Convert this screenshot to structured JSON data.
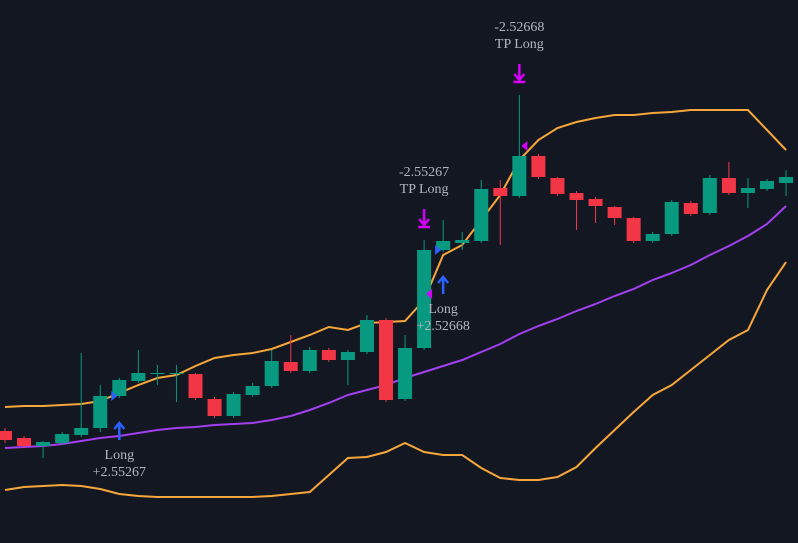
{
  "chart_data": {
    "type": "candlestick",
    "ylim": [
      0,
      543
    ],
    "up_color": "#089981",
    "down_color": "#f23645",
    "open": [
      112,
      105,
      97,
      100,
      108,
      115,
      147,
      162,
      169,
      170,
      169,
      144,
      127,
      148,
      157,
      181,
      172,
      193,
      183,
      191,
      223,
      144,
      195,
      293,
      300,
      302,
      355,
      347,
      387,
      365,
      350,
      344,
      336,
      325,
      302,
      309,
      340,
      330,
      365,
      350,
      354,
      360
    ],
    "high": [
      115,
      107,
      102,
      111,
      190,
      158,
      165,
      193,
      178,
      178,
      170,
      146,
      151,
      160,
      193,
      208,
      196,
      195,
      193,
      228,
      225,
      208,
      303,
      323,
      311,
      363,
      363,
      448,
      389,
      366,
      352,
      346,
      337,
      326,
      311,
      343,
      342,
      368,
      381,
      365,
      364,
      373
    ],
    "low": [
      100,
      95,
      85,
      98,
      106,
      111,
      145,
      160,
      158,
      141,
      143,
      125,
      125,
      146,
      155,
      170,
      170,
      181,
      158,
      189,
      141,
      142,
      193,
      291,
      293,
      300,
      298,
      345,
      364,
      347,
      313,
      320,
      318,
      300,
      300,
      307,
      327,
      328,
      348,
      335,
      352,
      347
    ],
    "close": [
      103,
      97,
      101,
      109,
      115,
      147,
      163,
      170,
      170,
      170,
      145,
      127,
      149,
      157,
      182,
      172,
      193,
      183,
      191,
      223,
      143,
      195,
      293,
      302,
      303,
      354,
      347,
      387,
      366,
      349,
      343,
      337,
      325,
      302,
      309,
      341,
      329,
      365,
      350,
      355,
      362,
      366
    ],
    "bands": [
      {
        "name": "upper",
        "color": "#f7a63a",
        "values": [
          136,
          137,
          137,
          138,
          139,
          142,
          150,
          158,
          165,
          168,
          177,
          185,
          188,
          190,
          194,
          201,
          208,
          216,
          213,
          220,
          221,
          222,
          243,
          288,
          298,
          323,
          348,
          383,
          403,
          415,
          421,
          425,
          428,
          428,
          430,
          431,
          433,
          433,
          433,
          433,
          413,
          393
        ]
      },
      {
        "name": "middle",
        "color": "#a23ff0",
        "values": [
          95,
          96,
          97,
          99,
          102,
          105,
          107,
          110,
          113,
          115,
          116,
          118,
          119,
          120,
          123,
          127,
          133,
          140,
          148,
          153,
          158,
          165,
          171,
          177,
          183,
          191,
          199,
          209,
          217,
          224,
          232,
          239,
          247,
          254,
          263,
          270,
          278,
          288,
          297,
          307,
          319,
          337
        ]
      },
      {
        "name": "lower",
        "color": "#f7a63a",
        "values": [
          53,
          56,
          57,
          58,
          57,
          54,
          49,
          47,
          46,
          46,
          46,
          46,
          46,
          46,
          47,
          49,
          51,
          68,
          85,
          86,
          91,
          100,
          91,
          88,
          88,
          75,
          65,
          63,
          63,
          66,
          76,
          95,
          113,
          131,
          148,
          158,
          173,
          188,
          203,
          213,
          253,
          281
        ]
      }
    ],
    "signals": [
      null,
      null,
      null,
      null,
      null,
      null,
      {
        "kind": "entry",
        "color": "#2962ff",
        "level": 147,
        "text": [
          "Long",
          "+2.55267"
        ]
      },
      null,
      null,
      null,
      null,
      null,
      null,
      null,
      null,
      null,
      null,
      null,
      null,
      null,
      null,
      null,
      {
        "kind": "exit",
        "color": "#d500f9",
        "level": 249,
        "text": [
          "-2.55267",
          "TP Long"
        ]
      },
      {
        "kind": "entry",
        "color": "#2962ff",
        "level": 293,
        "text": [
          "Long",
          "+2.52668"
        ]
      },
      null,
      null,
      null,
      {
        "kind": "exit",
        "color": "#d500f9",
        "level": 397,
        "text": [
          "-2.52668",
          "TP Long"
        ]
      },
      null,
      null,
      null,
      null,
      null,
      null,
      null,
      null,
      null,
      null,
      null,
      null,
      null,
      null
    ]
  }
}
